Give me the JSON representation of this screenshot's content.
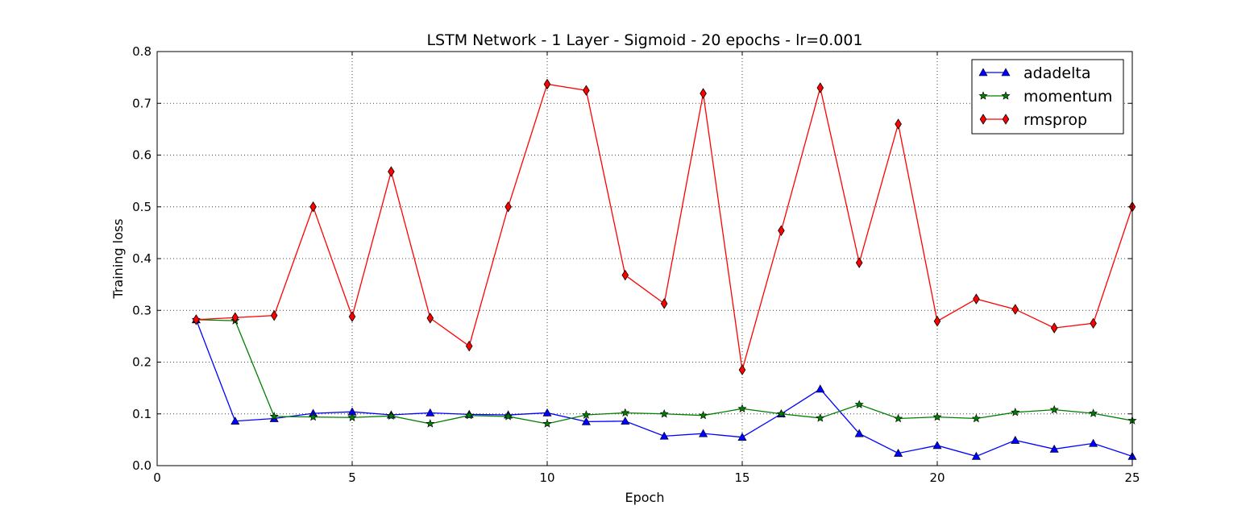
{
  "chart_data": {
    "type": "line",
    "title": "LSTM Network - 1 Layer - Sigmoid - 20 epochs - lr=0.001",
    "xlabel": "Epoch",
    "ylabel": "Training loss",
    "xlim": [
      0,
      25
    ],
    "ylim": [
      0.0,
      0.8
    ],
    "xticks": [
      "0",
      "5",
      "10",
      "15",
      "20",
      "25"
    ],
    "yticks": [
      "0.0",
      "0.1",
      "0.2",
      "0.3",
      "0.4",
      "0.5",
      "0.6",
      "0.7",
      "0.8"
    ],
    "grid": true,
    "legend_position": "top-right",
    "x": [
      1,
      2,
      3,
      4,
      5,
      6,
      7,
      8,
      9,
      10,
      11,
      12,
      13,
      14,
      15,
      16,
      17,
      18,
      19,
      20,
      21,
      22,
      23,
      24,
      25
    ],
    "series": [
      {
        "name": "adadelta",
        "color": "#0000ff",
        "marker": "triangle",
        "values": [
          0.282,
          0.086,
          0.091,
          0.101,
          0.104,
          0.098,
          0.102,
          0.099,
          0.098,
          0.102,
          0.085,
          0.086,
          0.057,
          0.062,
          0.055,
          0.1,
          0.148,
          0.062,
          0.024,
          0.039,
          0.018,
          0.049,
          0.032,
          0.043,
          0.018
        ]
      },
      {
        "name": "momentum",
        "color": "#007f00",
        "marker": "star",
        "values": [
          0.282,
          0.28,
          0.095,
          0.094,
          0.093,
          0.096,
          0.081,
          0.097,
          0.095,
          0.081,
          0.098,
          0.102,
          0.1,
          0.097,
          0.11,
          0.1,
          0.092,
          0.118,
          0.091,
          0.094,
          0.091,
          0.103,
          0.108,
          0.101,
          0.087
        ]
      },
      {
        "name": "rmsprop",
        "color": "#ff0000",
        "marker": "diamond",
        "values": [
          0.282,
          0.286,
          0.29,
          0.5,
          0.288,
          0.568,
          0.285,
          0.231,
          0.5,
          0.737,
          0.725,
          0.368,
          0.313,
          0.719,
          0.185,
          0.454,
          0.73,
          0.392,
          0.66,
          0.279,
          0.322,
          0.302,
          0.266,
          0.275,
          0.5
        ]
      }
    ]
  }
}
